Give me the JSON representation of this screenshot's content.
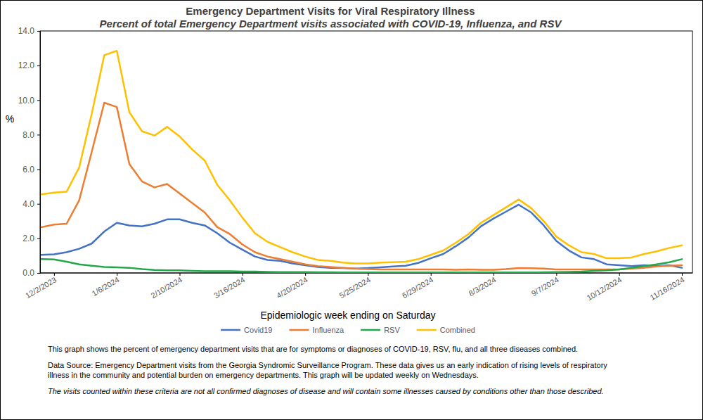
{
  "chart_data": {
    "type": "line",
    "title": "Emergency Department Visits for Viral Respiratory Illness",
    "subtitle": "Percent of total Emergency Department visits associated with COVID-19, Influenza, and RSV",
    "x_label": "Epidemiologic week ending on Saturday",
    "y_label": "%",
    "categories": [
      null,
      "12/2/2023",
      null,
      null,
      null,
      null,
      "1/6/2024",
      null,
      null,
      null,
      null,
      "2/10/2024",
      null,
      null,
      null,
      null,
      "3/16/2024",
      null,
      null,
      null,
      null,
      "4/20/2024",
      null,
      null,
      null,
      null,
      "5/25/2024",
      null,
      null,
      null,
      null,
      "6/29/2024",
      null,
      null,
      null,
      null,
      "8/3/2024",
      null,
      null,
      null,
      null,
      "9/7/2024",
      null,
      null,
      null,
      null,
      "10/12/2024",
      null,
      null,
      null,
      null,
      "11/16/2024"
    ],
    "series": [
      {
        "name": "Covid19",
        "color": "#4472c4",
        "values": [
          1.05,
          1.08,
          1.2,
          1.4,
          1.7,
          2.4,
          2.9,
          2.75,
          2.7,
          2.85,
          3.1,
          3.1,
          2.9,
          2.75,
          2.3,
          1.75,
          1.35,
          0.95,
          0.75,
          0.7,
          0.55,
          0.45,
          0.35,
          0.3,
          0.28,
          0.25,
          0.28,
          0.33,
          0.38,
          0.42,
          0.58,
          0.85,
          1.1,
          1.55,
          2.05,
          2.7,
          3.15,
          3.55,
          3.95,
          3.5,
          2.75,
          1.85,
          1.3,
          0.9,
          0.8,
          0.5,
          0.45,
          0.4,
          0.45,
          0.4,
          0.45,
          0.3
        ]
      },
      {
        "name": "Influenza",
        "color": "#ed7d31",
        "values": [
          2.65,
          2.8,
          2.85,
          4.2,
          7,
          9.85,
          9.6,
          6.3,
          5.3,
          4.95,
          5.15,
          4.6,
          4.05,
          3.5,
          2.65,
          2.25,
          1.65,
          1.2,
          0.95,
          0.8,
          0.65,
          0.5,
          0.4,
          0.35,
          0.3,
          0.25,
          0.22,
          0.2,
          0.2,
          0.2,
          0.2,
          0.2,
          0.2,
          0.18,
          0.2,
          0.18,
          0.18,
          0.22,
          0.28,
          0.27,
          0.25,
          0.2,
          0.2,
          0.2,
          0.2,
          0.2,
          0.2,
          0.25,
          0.3,
          0.38,
          0.42,
          0.45
        ]
      },
      {
        "name": "RSV",
        "color": "#22a84a",
        "values": [
          0.8,
          0.78,
          0.65,
          0.5,
          0.42,
          0.35,
          0.33,
          0.3,
          0.22,
          0.17,
          0.15,
          0.15,
          0.12,
          0.1,
          0.1,
          0.1,
          0.08,
          0.08,
          0.06,
          0.05,
          0.05,
          0.05,
          0.04,
          0.04,
          0.03,
          0.03,
          0.03,
          0.03,
          0.03,
          0.03,
          0.03,
          0.03,
          0.03,
          0.03,
          0.03,
          0.03,
          0.03,
          0.03,
          0.03,
          0.03,
          0.04,
          0.05,
          0.06,
          0.08,
          0.12,
          0.15,
          0.2,
          0.3,
          0.4,
          0.5,
          0.62,
          0.8
        ]
      },
      {
        "name": "Combined",
        "color": "#ffc000",
        "values": [
          4.55,
          4.65,
          4.7,
          6.1,
          9.2,
          12.6,
          12.85,
          9.3,
          8.2,
          7.95,
          8.45,
          7.9,
          7.15,
          6.5,
          5.1,
          4.2,
          3.2,
          2.3,
          1.8,
          1.5,
          1.2,
          0.95,
          0.75,
          0.7,
          0.6,
          0.55,
          0.55,
          0.6,
          0.62,
          0.65,
          0.8,
          1.05,
          1.3,
          1.75,
          2.25,
          2.9,
          3.35,
          3.8,
          4.25,
          3.75,
          3,
          2.1,
          1.6,
          1.2,
          1.1,
          0.85,
          0.85,
          0.9,
          1.1,
          1.25,
          1.45,
          1.6
        ]
      }
    ],
    "ylim": [
      0,
      14
    ],
    "yticks": [
      {
        "value": 0,
        "label": "0.0"
      },
      {
        "value": 2,
        "label": "2.0"
      },
      {
        "value": 4,
        "label": "4.0"
      },
      {
        "value": 6,
        "label": "6.0"
      },
      {
        "value": 8,
        "label": "8.0"
      },
      {
        "value": 10,
        "label": "10.0"
      },
      {
        "value": 12,
        "label": "12.0"
      },
      {
        "value": 14,
        "label": "14.0"
      }
    ],
    "grid": false,
    "legend": "bottom",
    "notes": [
      "This graph shows the percent of emergency department visits that are for symptoms or diagnoses of COVID-19, RSV, flu, and all three diseases combined.",
      "Data Source: Emergency Department visits from the Georgia Syndromic Surveillance Program. These data gives us an early indication of rising levels of respiratory illness in the community and potential burden on emergency departments. This graph will be updated weekly on Wednesdays.",
      "The visits counted within these criteria are not all confirmed diagnoses of disease and will contain some illnesses caused by conditions other than those described."
    ]
  }
}
